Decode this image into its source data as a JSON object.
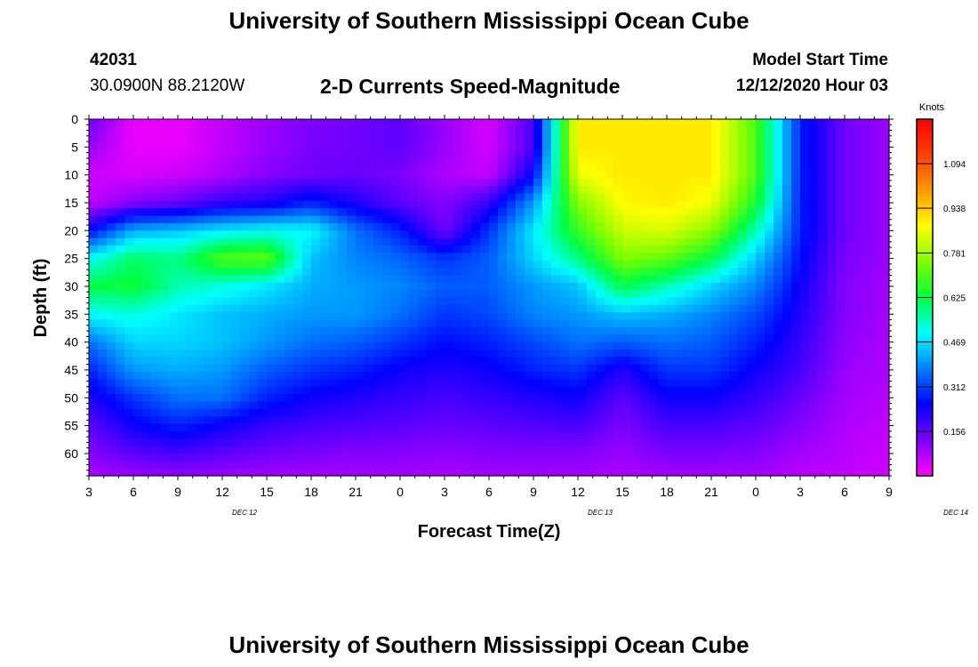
{
  "header": {
    "title_top": "University of Southern Mississippi Ocean Cube",
    "title_bottom": "University of Southern Mississippi Ocean Cube",
    "station_id": "42031",
    "coordinates": "30.0900N 88.2120W",
    "subtitle": "2-D Currents Speed-Magnitude",
    "model_start_label": "Model Start Time",
    "model_start_value": "12/12/2020 Hour 03"
  },
  "colors": {
    "colormap": [
      "#ff00ff",
      "#8000ff",
      "#0000ff",
      "#0080ff",
      "#00ffff",
      "#00ff40",
      "#80ff00",
      "#ffff00",
      "#ff9900",
      "#ff4000",
      "#ff0000"
    ]
  },
  "chart_data": {
    "type": "heatmap",
    "title": "2-D Currents Speed-Magnitude",
    "xlabel": "Forecast Time(Z)",
    "ylabel": "Depth (ft)",
    "x_tick_labels": [
      "3",
      "6",
      "9",
      "12",
      "15",
      "18",
      "21",
      "0",
      "3",
      "6",
      "9",
      "12",
      "15",
      "18",
      "21",
      "0",
      "3",
      "6",
      "9"
    ],
    "date_labels": [
      {
        "label": "DEC 12",
        "hour_offset": 10.5
      },
      {
        "label": "DEC 13",
        "hour_offset": 34.5
      },
      {
        "label": "DEC 14",
        "hour_offset": 58.5
      }
    ],
    "x_range_hours": [
      0,
      54
    ],
    "y_tick_labels": [
      "0",
      "5",
      "10",
      "15",
      "20",
      "25",
      "30",
      "35",
      "40",
      "45",
      "50",
      "55",
      "60"
    ],
    "ylim": [
      0,
      64
    ],
    "colorbar": {
      "label": "Knots",
      "tick_labels": [
        "1.094",
        "0.938",
        "0.781",
        "0.625",
        "0.469",
        "0.312",
        "0.156"
      ],
      "tick_values": [
        1.094,
        0.938,
        0.781,
        0.625,
        0.469,
        0.312,
        0.156
      ],
      "range": [
        0,
        1.25
      ]
    },
    "speed_grid": {
      "units": "knots",
      "times_hours": [
        0,
        3,
        6,
        9,
        12,
        15,
        18,
        21,
        24,
        27,
        30,
        33,
        36,
        39,
        42,
        45,
        48,
        51,
        54
      ],
      "depths_ft": [
        0,
        5,
        10,
        15,
        20,
        25,
        30,
        35,
        40,
        45,
        50,
        55,
        60,
        64
      ],
      "values": [
        [
          0.15,
          0.02,
          0.02,
          0.06,
          0.1,
          0.13,
          0.14,
          0.16,
          0.1,
          0.04,
          0.18,
          0.9,
          0.9,
          0.9,
          0.9,
          0.7,
          0.28,
          0.14,
          0.1
        ],
        [
          0.1,
          0.02,
          0.02,
          0.06,
          0.1,
          0.13,
          0.14,
          0.16,
          0.1,
          0.04,
          0.18,
          0.9,
          0.9,
          0.9,
          0.9,
          0.7,
          0.28,
          0.14,
          0.1
        ],
        [
          0.05,
          0.04,
          0.05,
          0.08,
          0.12,
          0.14,
          0.15,
          0.13,
          0.08,
          0.06,
          0.25,
          0.86,
          0.9,
          0.9,
          0.9,
          0.7,
          0.28,
          0.14,
          0.1
        ],
        [
          0.06,
          0.12,
          0.15,
          0.2,
          0.22,
          0.28,
          0.22,
          0.16,
          0.12,
          0.2,
          0.4,
          0.75,
          0.88,
          0.9,
          0.86,
          0.65,
          0.28,
          0.14,
          0.1
        ],
        [
          0.25,
          0.42,
          0.44,
          0.48,
          0.5,
          0.5,
          0.36,
          0.28,
          0.14,
          0.3,
          0.48,
          0.68,
          0.82,
          0.84,
          0.76,
          0.55,
          0.28,
          0.14,
          0.1
        ],
        [
          0.5,
          0.6,
          0.58,
          0.7,
          0.72,
          0.44,
          0.38,
          0.35,
          0.3,
          0.34,
          0.46,
          0.58,
          0.75,
          0.72,
          0.62,
          0.45,
          0.26,
          0.13,
          0.1
        ],
        [
          0.62,
          0.64,
          0.55,
          0.52,
          0.48,
          0.42,
          0.4,
          0.38,
          0.34,
          0.34,
          0.4,
          0.44,
          0.62,
          0.55,
          0.46,
          0.38,
          0.24,
          0.12,
          0.09
        ],
        [
          0.5,
          0.52,
          0.48,
          0.44,
          0.42,
          0.4,
          0.4,
          0.36,
          0.3,
          0.32,
          0.38,
          0.4,
          0.44,
          0.42,
          0.38,
          0.32,
          0.22,
          0.12,
          0.09
        ],
        [
          0.36,
          0.46,
          0.46,
          0.44,
          0.4,
          0.36,
          0.34,
          0.3,
          0.26,
          0.28,
          0.32,
          0.36,
          0.34,
          0.36,
          0.34,
          0.28,
          0.2,
          0.11,
          0.08
        ],
        [
          0.28,
          0.4,
          0.42,
          0.4,
          0.34,
          0.3,
          0.28,
          0.24,
          0.22,
          0.24,
          0.28,
          0.3,
          0.22,
          0.3,
          0.3,
          0.24,
          0.18,
          0.1,
          0.08
        ],
        [
          0.22,
          0.3,
          0.36,
          0.36,
          0.28,
          0.24,
          0.22,
          0.2,
          0.18,
          0.2,
          0.22,
          0.24,
          0.16,
          0.24,
          0.24,
          0.2,
          0.15,
          0.09,
          0.07
        ],
        [
          0.16,
          0.24,
          0.28,
          0.24,
          0.2,
          0.18,
          0.17,
          0.16,
          0.15,
          0.16,
          0.17,
          0.18,
          0.13,
          0.18,
          0.18,
          0.16,
          0.12,
          0.08,
          0.06
        ],
        [
          0.12,
          0.16,
          0.18,
          0.16,
          0.14,
          0.13,
          0.12,
          0.12,
          0.11,
          0.12,
          0.12,
          0.12,
          0.1,
          0.13,
          0.13,
          0.12,
          0.09,
          0.07,
          0.05
        ],
        [
          0.08,
          0.1,
          0.11,
          0.1,
          0.09,
          0.09,
          0.09,
          0.09,
          0.08,
          0.09,
          0.09,
          0.09,
          0.08,
          0.09,
          0.09,
          0.09,
          0.07,
          0.06,
          0.05
        ]
      ]
    }
  }
}
